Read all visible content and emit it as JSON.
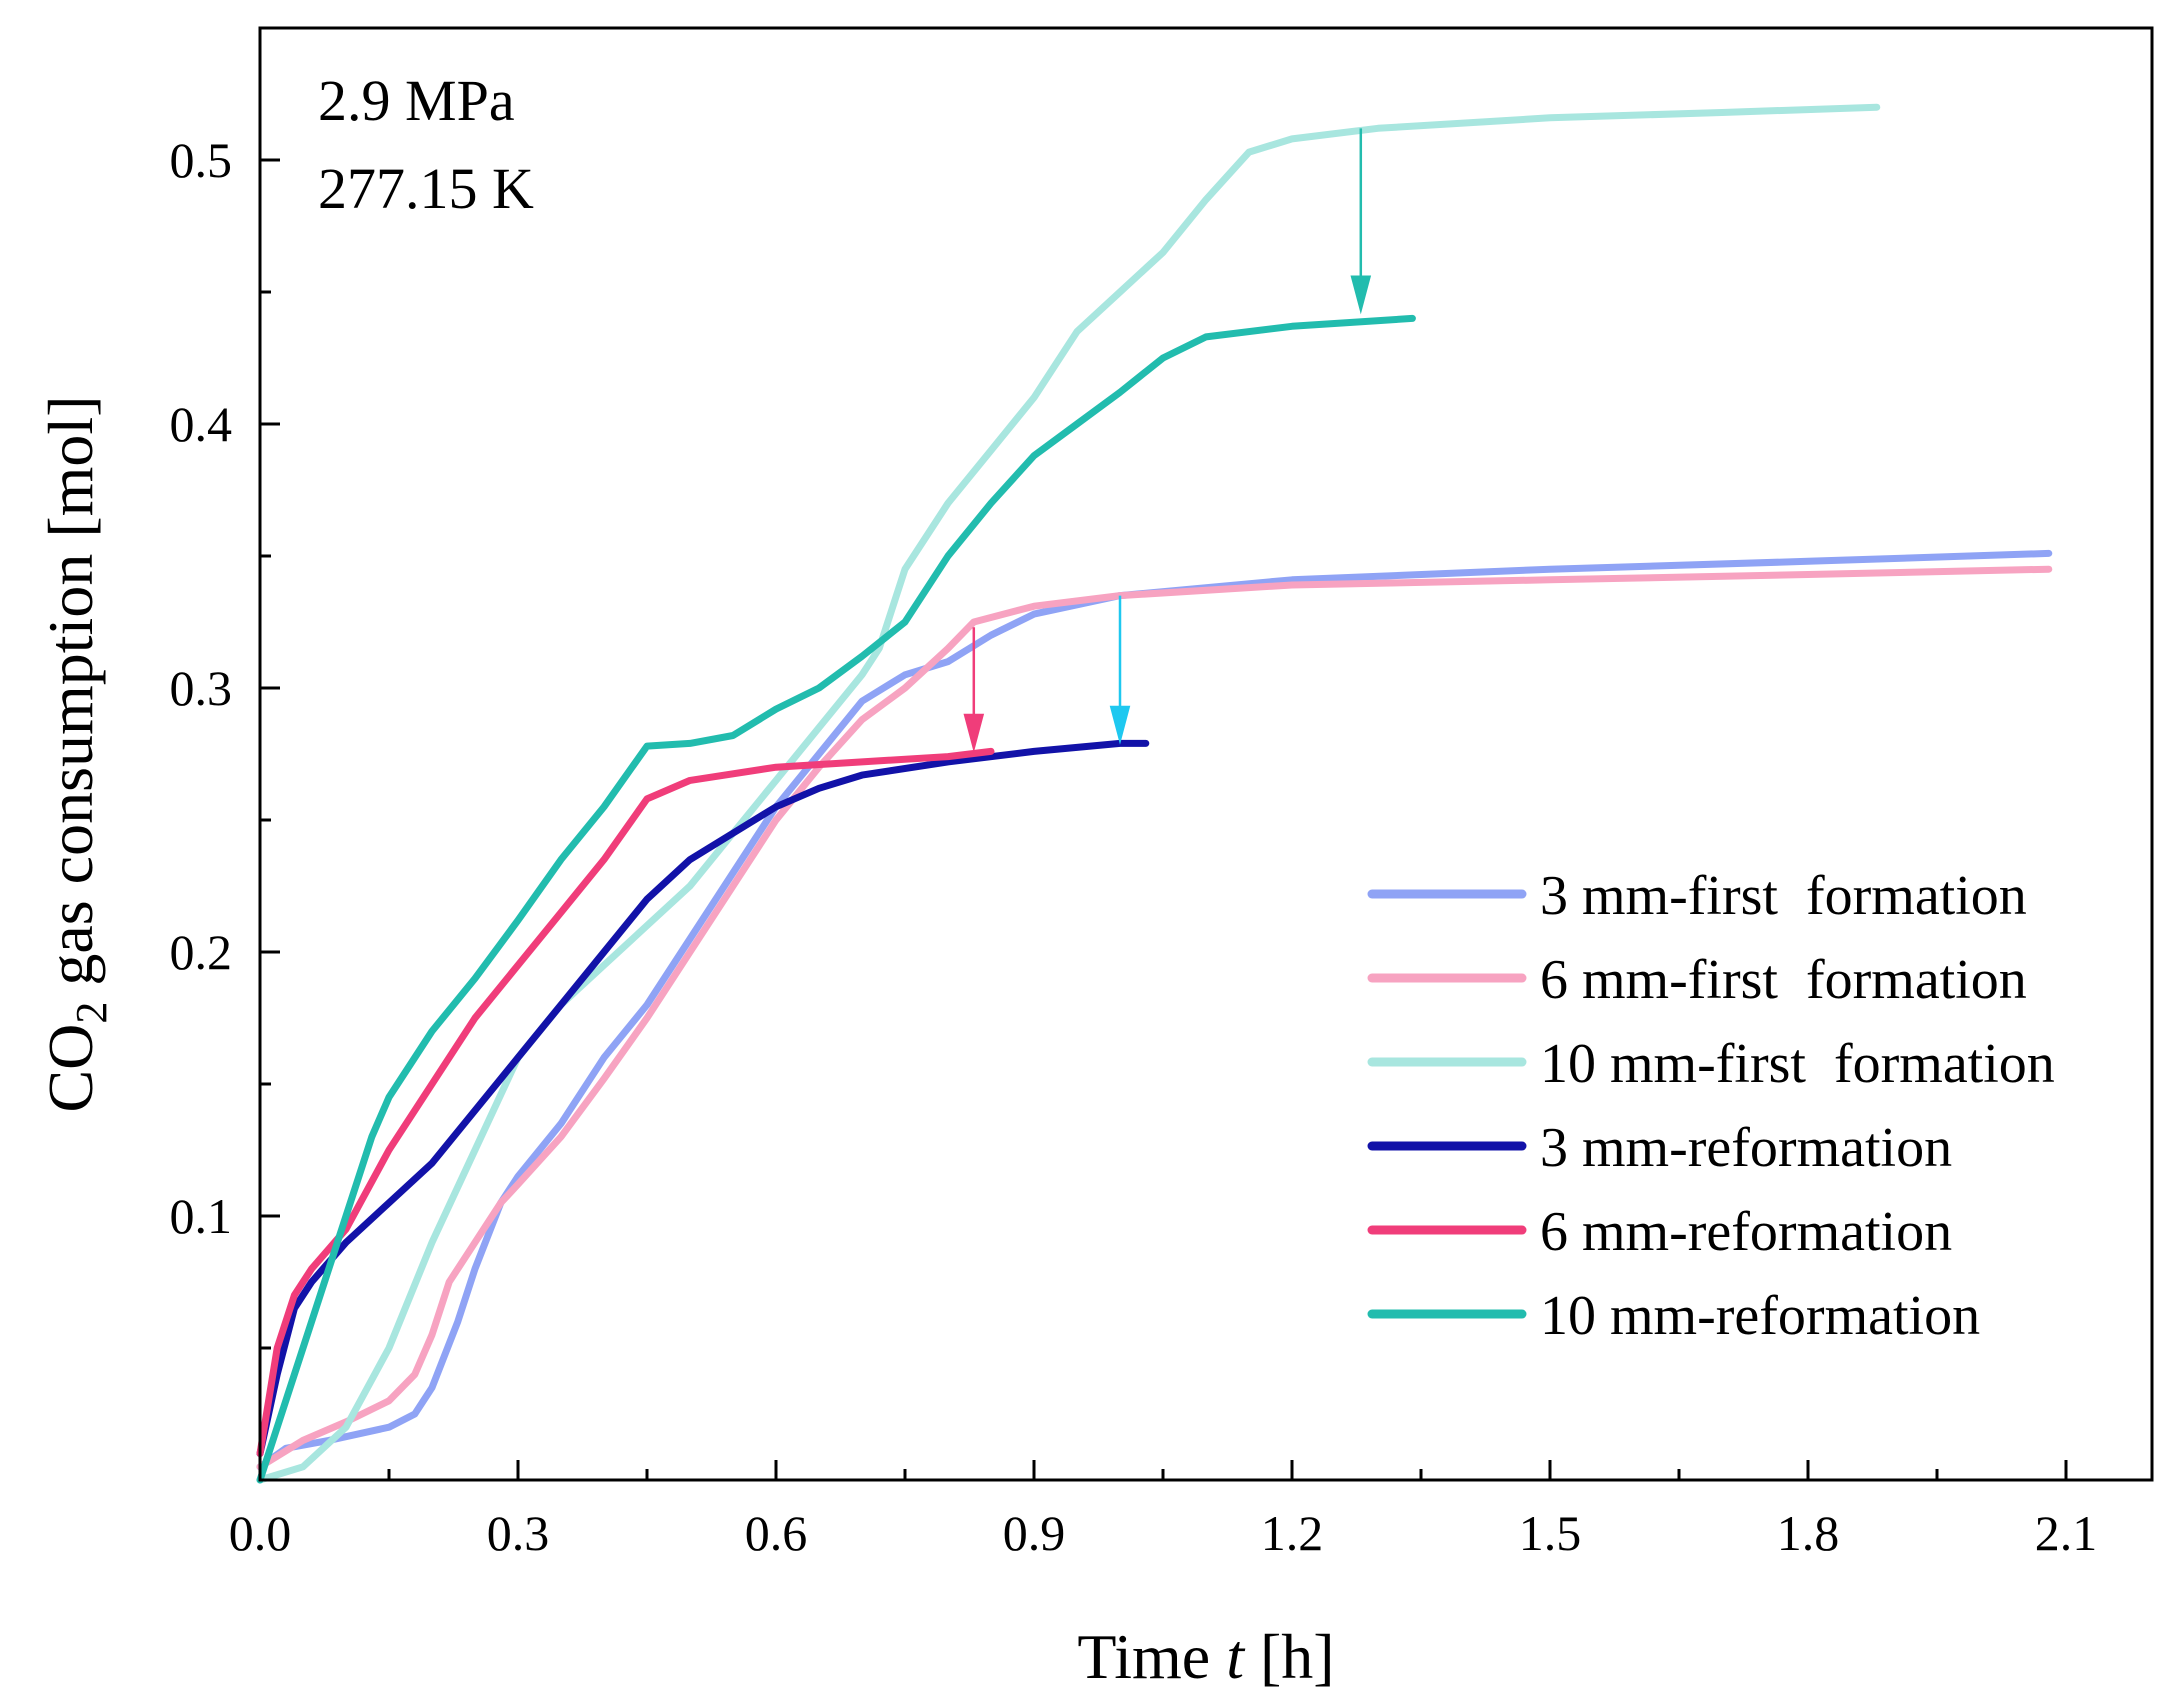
{
  "chart_data": {
    "type": "line",
    "xlabel_main": "Time ",
    "xlabel_var": "t",
    "xlabel_unit": " [h]",
    "ylabel_prefix": "CO",
    "ylabel_sub": "2",
    "ylabel_suffix": " gas consumption [mol]",
    "xlim": [
      0.0,
      2.2
    ],
    "ylim": [
      0.0,
      0.55
    ],
    "x_ticks": [
      "0.0",
      "0.3",
      "0.6",
      "0.9",
      "1.2",
      "1.5",
      "1.8",
      "2.1"
    ],
    "y_ticks": [
      "0.1",
      "0.2",
      "0.3",
      "0.4",
      "0.5"
    ],
    "annotations": [
      "2.9 MPa",
      "277.15 K"
    ],
    "series": [
      {
        "name": "3 mm-first  formation",
        "color": "#8fa3f5",
        "points": [
          [
            0,
            0.005
          ],
          [
            0.03,
            0.012
          ],
          [
            0.08,
            0.015
          ],
          [
            0.15,
            0.02
          ],
          [
            0.18,
            0.025
          ],
          [
            0.2,
            0.035
          ],
          [
            0.23,
            0.06
          ],
          [
            0.25,
            0.08
          ],
          [
            0.28,
            0.105
          ],
          [
            0.3,
            0.115
          ],
          [
            0.35,
            0.135
          ],
          [
            0.4,
            0.16
          ],
          [
            0.45,
            0.18
          ],
          [
            0.5,
            0.205
          ],
          [
            0.55,
            0.23
          ],
          [
            0.6,
            0.255
          ],
          [
            0.65,
            0.275
          ],
          [
            0.7,
            0.295
          ],
          [
            0.75,
            0.305
          ],
          [
            0.8,
            0.31
          ],
          [
            0.85,
            0.32
          ],
          [
            0.9,
            0.328
          ],
          [
            1.0,
            0.335
          ],
          [
            1.2,
            0.341
          ],
          [
            1.5,
            0.345
          ],
          [
            1.8,
            0.348
          ],
          [
            2.08,
            0.351
          ]
        ]
      },
      {
        "name": "6 mm-first  formation",
        "color": "#f7a3c1",
        "points": [
          [
            0,
            0.005
          ],
          [
            0.05,
            0.015
          ],
          [
            0.1,
            0.022
          ],
          [
            0.15,
            0.03
          ],
          [
            0.18,
            0.04
          ],
          [
            0.2,
            0.055
          ],
          [
            0.22,
            0.075
          ],
          [
            0.25,
            0.09
          ],
          [
            0.28,
            0.105
          ],
          [
            0.3,
            0.112
          ],
          [
            0.35,
            0.13
          ],
          [
            0.4,
            0.152
          ],
          [
            0.45,
            0.175
          ],
          [
            0.5,
            0.2
          ],
          [
            0.55,
            0.225
          ],
          [
            0.6,
            0.25
          ],
          [
            0.65,
            0.27
          ],
          [
            0.7,
            0.288
          ],
          [
            0.75,
            0.3
          ],
          [
            0.8,
            0.315
          ],
          [
            0.83,
            0.325
          ],
          [
            0.9,
            0.331
          ],
          [
            1.0,
            0.335
          ],
          [
            1.2,
            0.339
          ],
          [
            1.5,
            0.341
          ],
          [
            1.8,
            0.343
          ],
          [
            2.08,
            0.345
          ]
        ]
      },
      {
        "name": "10 mm-first  formation",
        "color": "#a8e6df",
        "points": [
          [
            0,
            0.0
          ],
          [
            0.05,
            0.005
          ],
          [
            0.1,
            0.02
          ],
          [
            0.15,
            0.05
          ],
          [
            0.2,
            0.09
          ],
          [
            0.25,
            0.125
          ],
          [
            0.3,
            0.16
          ],
          [
            0.35,
            0.18
          ],
          [
            0.4,
            0.195
          ],
          [
            0.45,
            0.21
          ],
          [
            0.5,
            0.225
          ],
          [
            0.55,
            0.245
          ],
          [
            0.6,
            0.265
          ],
          [
            0.65,
            0.285
          ],
          [
            0.7,
            0.305
          ],
          [
            0.72,
            0.315
          ],
          [
            0.75,
            0.345
          ],
          [
            0.8,
            0.37
          ],
          [
            0.85,
            0.39
          ],
          [
            0.9,
            0.41
          ],
          [
            0.95,
            0.435
          ],
          [
            1.0,
            0.45
          ],
          [
            1.05,
            0.465
          ],
          [
            1.1,
            0.485
          ],
          [
            1.15,
            0.503
          ],
          [
            1.2,
            0.508
          ],
          [
            1.3,
            0.512
          ],
          [
            1.5,
            0.516
          ],
          [
            1.7,
            0.518
          ],
          [
            1.88,
            0.52
          ]
        ]
      },
      {
        "name": "3 mm-reformation",
        "color": "#1212a8",
        "points": [
          [
            0,
            0.01
          ],
          [
            0.02,
            0.04
          ],
          [
            0.04,
            0.065
          ],
          [
            0.06,
            0.075
          ],
          [
            0.1,
            0.09
          ],
          [
            0.15,
            0.105
          ],
          [
            0.2,
            0.12
          ],
          [
            0.25,
            0.14
          ],
          [
            0.3,
            0.16
          ],
          [
            0.35,
            0.18
          ],
          [
            0.4,
            0.2
          ],
          [
            0.45,
            0.22
          ],
          [
            0.5,
            0.235
          ],
          [
            0.55,
            0.245
          ],
          [
            0.6,
            0.255
          ],
          [
            0.65,
            0.262
          ],
          [
            0.7,
            0.267
          ],
          [
            0.8,
            0.272
          ],
          [
            0.9,
            0.276
          ],
          [
            1.0,
            0.279
          ],
          [
            1.03,
            0.279
          ]
        ]
      },
      {
        "name": "6 mm-reformation",
        "color": "#f03d7a",
        "points": [
          [
            0,
            0.01
          ],
          [
            0.02,
            0.05
          ],
          [
            0.04,
            0.07
          ],
          [
            0.06,
            0.08
          ],
          [
            0.1,
            0.095
          ],
          [
            0.15,
            0.125
          ],
          [
            0.2,
            0.15
          ],
          [
            0.25,
            0.175
          ],
          [
            0.3,
            0.195
          ],
          [
            0.35,
            0.215
          ],
          [
            0.4,
            0.235
          ],
          [
            0.45,
            0.258
          ],
          [
            0.5,
            0.265
          ],
          [
            0.6,
            0.27
          ],
          [
            0.7,
            0.272
          ],
          [
            0.8,
            0.274
          ],
          [
            0.85,
            0.276
          ]
        ]
      },
      {
        "name": "10 mm-reformation",
        "color": "#22bcae",
        "points": [
          [
            0,
            0.0
          ],
          [
            0.05,
            0.05
          ],
          [
            0.1,
            0.1
          ],
          [
            0.13,
            0.13
          ],
          [
            0.15,
            0.145
          ],
          [
            0.2,
            0.17
          ],
          [
            0.25,
            0.19
          ],
          [
            0.3,
            0.212
          ],
          [
            0.35,
            0.235
          ],
          [
            0.4,
            0.255
          ],
          [
            0.45,
            0.278
          ],
          [
            0.5,
            0.279
          ],
          [
            0.55,
            0.282
          ],
          [
            0.6,
            0.292
          ],
          [
            0.65,
            0.3
          ],
          [
            0.7,
            0.312
          ],
          [
            0.75,
            0.325
          ],
          [
            0.8,
            0.35
          ],
          [
            0.85,
            0.37
          ],
          [
            0.9,
            0.388
          ],
          [
            0.95,
            0.4
          ],
          [
            1.0,
            0.412
          ],
          [
            1.05,
            0.425
          ],
          [
            1.1,
            0.433
          ],
          [
            1.2,
            0.437
          ],
          [
            1.34,
            0.44
          ]
        ]
      }
    ],
    "arrows": [
      {
        "x": 1.28,
        "from": 0.512,
        "to": 0.443,
        "color": "#22bcae"
      },
      {
        "x": 0.83,
        "from": 0.323,
        "to": 0.277,
        "color": "#f03d7a"
      },
      {
        "x": 1.0,
        "from": 0.335,
        "to": 0.28,
        "color": "#1ec8f0"
      }
    ]
  }
}
